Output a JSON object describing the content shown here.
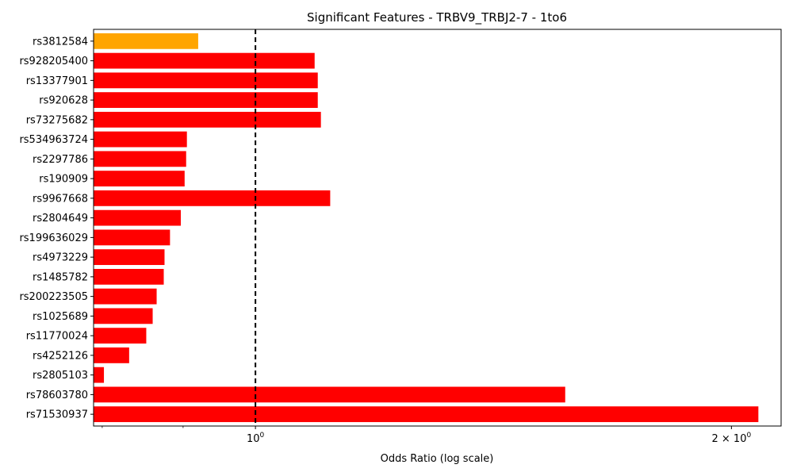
{
  "chart_data": {
    "type": "bar",
    "orientation": "horizontal",
    "title": "Significant Features - TRBV9_TRBJ2-7 - 1to6",
    "xlabel": "Odds Ratio (log scale)",
    "ylabel": "",
    "xscale": "log",
    "xlim": [
      0.79,
      2.15
    ],
    "x_ticks": [
      {
        "value": 1,
        "label": "10",
        "superscript": "0"
      },
      {
        "value": 2,
        "label": "2 × 10",
        "superscript": "0"
      }
    ],
    "reference_line": {
      "x": 1,
      "style": "dashed",
      "color": "#000000"
    },
    "grid": false,
    "categories": [
      "rs3812584",
      "rs928205400",
      "rs13377901",
      "rs920628",
      "rs73275682",
      "rs534963724",
      "rs2297786",
      "rs190909",
      "rs9967668",
      "rs2804649",
      "rs199636029",
      "rs4973229",
      "rs1485782",
      "rs200223505",
      "rs1025689",
      "rs11770024",
      "rs4252126",
      "rs2805103",
      "rs78603780",
      "rs71530937"
    ],
    "values": [
      0.92,
      1.09,
      1.095,
      1.095,
      1.1,
      0.905,
      0.904,
      0.902,
      1.115,
      0.897,
      0.883,
      0.876,
      0.875,
      0.866,
      0.861,
      0.853,
      0.832,
      0.802,
      1.57,
      2.08
    ],
    "colors": [
      "#FFA500",
      "#FF0000",
      "#FF0000",
      "#FF0000",
      "#FF0000",
      "#FF0000",
      "#FF0000",
      "#FF0000",
      "#FF0000",
      "#FF0000",
      "#FF0000",
      "#FF0000",
      "#FF0000",
      "#FF0000",
      "#FF0000",
      "#FF0000",
      "#FF0000",
      "#FF0000",
      "#FF0000",
      "#FF0000"
    ],
    "minor_ticks": [
      0.8,
      0.9,
      3
    ]
  }
}
